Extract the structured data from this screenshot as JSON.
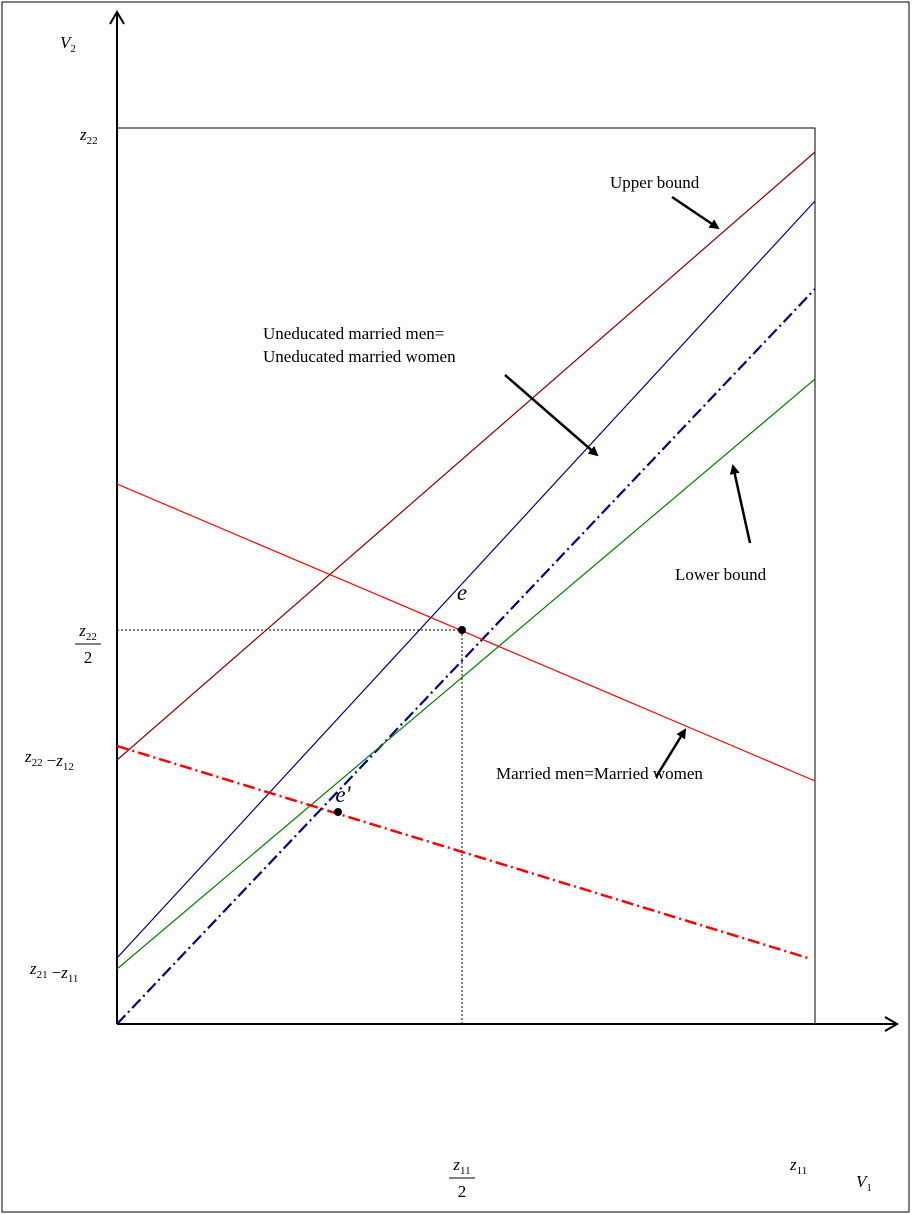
{
  "axes": {
    "y_label": {
      "base": "V",
      "sub": "2"
    },
    "x_label": {
      "base": "V",
      "sub": "1"
    }
  },
  "y_ticks": [
    {
      "base": "z",
      "sub": "22"
    },
    {
      "num": {
        "base": "z",
        "sub": "22"
      },
      "den": "2"
    },
    {
      "a": {
        "base": "z",
        "sub": "22"
      },
      "op": "−",
      "b": {
        "base": "z",
        "sub": "12"
      }
    },
    {
      "a": {
        "base": "z",
        "sub": "21"
      },
      "op": "−",
      "b": {
        "base": "z",
        "sub": "11"
      }
    }
  ],
  "x_ticks": [
    {
      "num": {
        "base": "z",
        "sub": "11"
      },
      "den": "2"
    },
    {
      "base": "z",
      "sub": "11"
    }
  ],
  "points": [
    "e",
    "e'"
  ],
  "annotations": {
    "upper": "Upper bound",
    "uneducated_1": "Uneducated married men=",
    "uneducated_2": "Uneducated married women",
    "lower": "Lower bound",
    "married": "Married men=Married women"
  }
}
